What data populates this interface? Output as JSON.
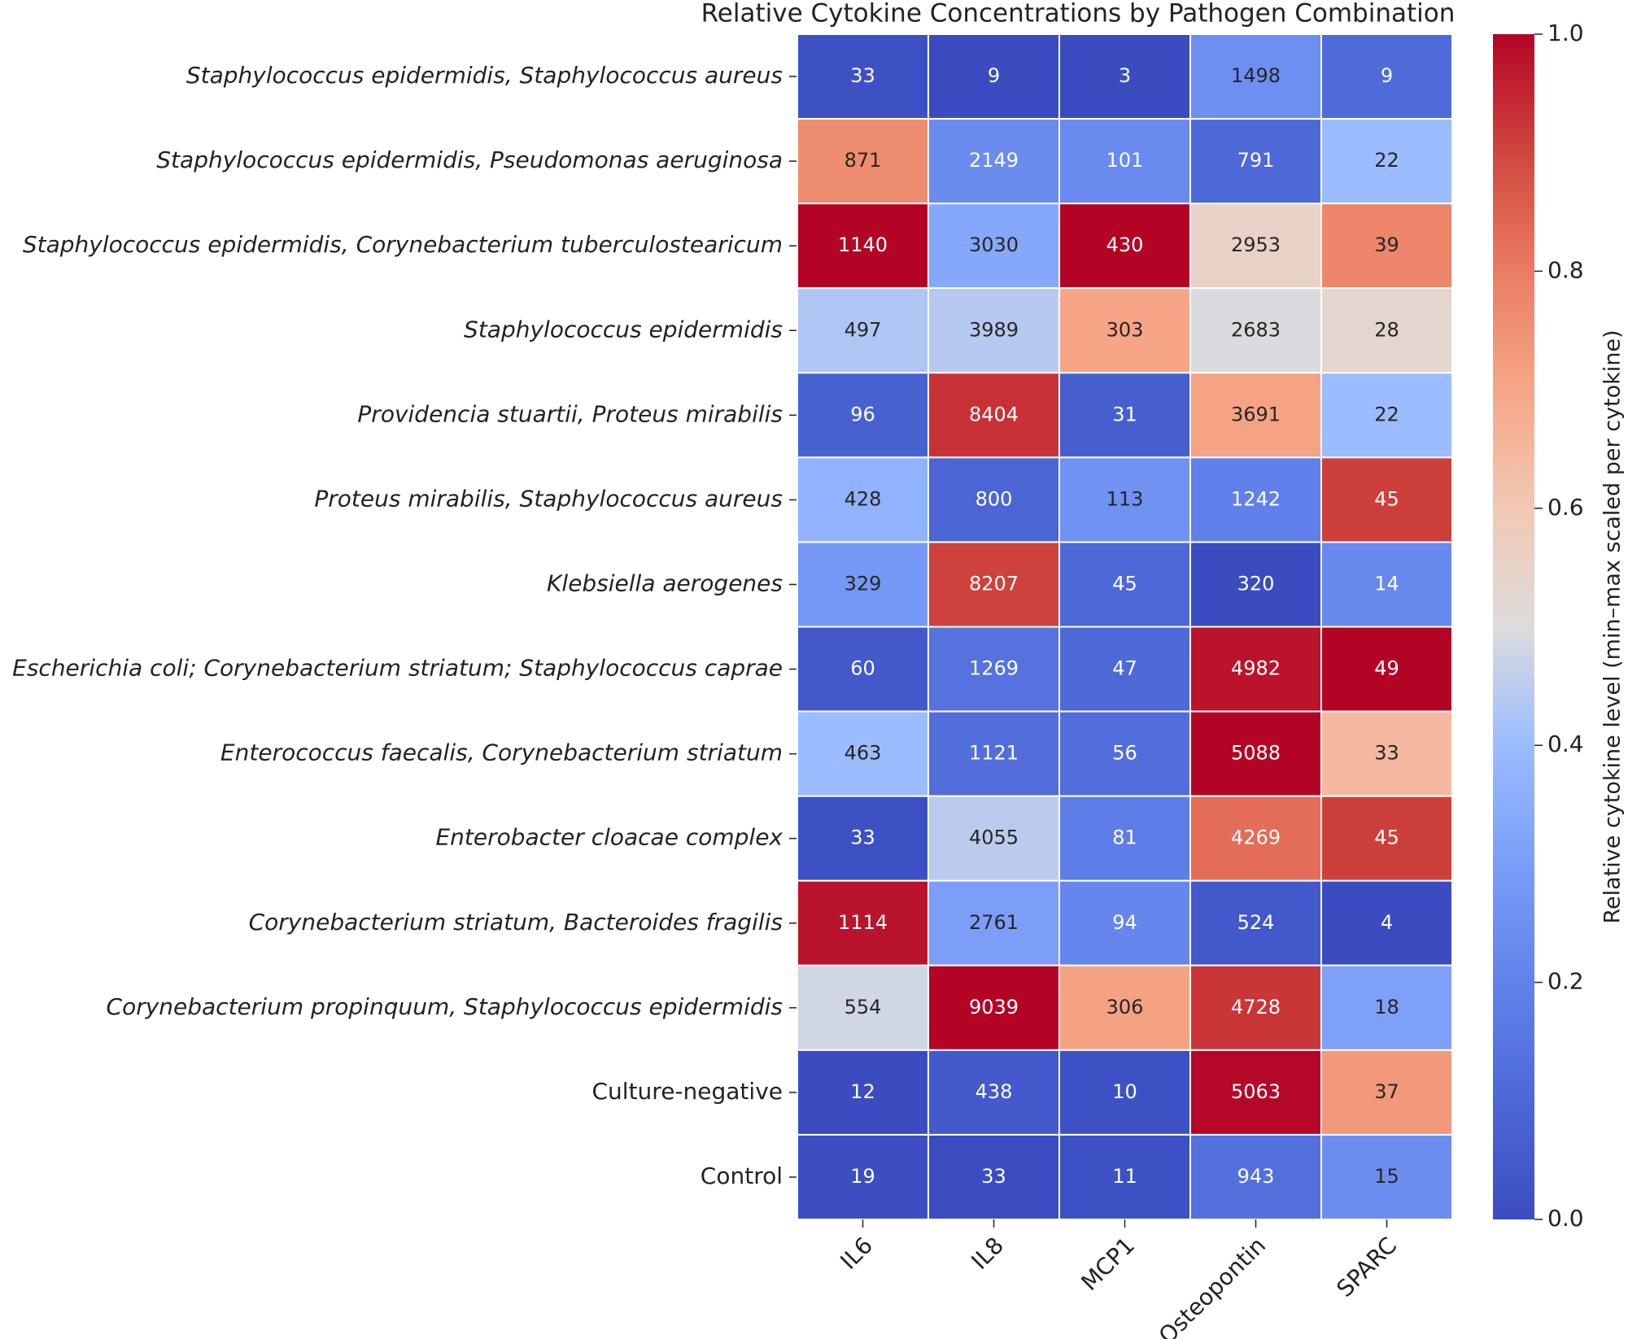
{
  "chart_data": {
    "type": "heatmap",
    "title": "Relative Cytokine Concentrations by Pathogen Combination",
    "rows": [
      "Staphylococcus epidermidis, Staphylococcus aureus",
      "Staphylococcus epidermidis, Pseudomonas aeruginosa",
      "Staphylococcus epidermidis, Corynebacterium tuberculostearicum",
      "Staphylococcus epidermidis",
      "Providencia stuartii, Proteus mirabilis",
      "Proteus mirabilis, Staphylococcus aureus",
      "Klebsiella aerogenes",
      "Escherichia coli; Corynebacterium striatum; Staphylococcus caprae",
      "Enterococcus faecalis, Corynebacterium striatum",
      "Enterobacter cloacae complex",
      "Corynebacterium striatum, Bacteroides fragilis",
      "Corynebacterium propinquum, Staphylococcus epidermidis",
      "Culture-negative",
      "Control"
    ],
    "row_label_style": [
      "italic",
      "italic",
      "italic",
      "italic",
      "italic",
      "italic",
      "italic",
      "italic",
      "italic",
      "italic",
      "italic",
      "italic",
      "normal",
      "normal"
    ],
    "columns": [
      "IL6",
      "IL8",
      "MCP1",
      "Osteopontin",
      "SPARC"
    ],
    "values": [
      [
        33,
        9,
        3,
        1498,
        9
      ],
      [
        871,
        2149,
        101,
        791,
        22
      ],
      [
        1140,
        3030,
        430,
        2953,
        39
      ],
      [
        497,
        3989,
        303,
        2683,
        28
      ],
      [
        96,
        8404,
        31,
        3691,
        22
      ],
      [
        428,
        800,
        113,
        1242,
        45
      ],
      [
        329,
        8207,
        45,
        320,
        14
      ],
      [
        60,
        1269,
        47,
        4982,
        49
      ],
      [
        463,
        1121,
        56,
        5088,
        33
      ],
      [
        33,
        4055,
        81,
        4269,
        45
      ],
      [
        1114,
        2761,
        94,
        524,
        4
      ],
      [
        554,
        9039,
        306,
        4728,
        18
      ],
      [
        12,
        438,
        10,
        5063,
        37
      ],
      [
        19,
        33,
        11,
        943,
        15
      ]
    ],
    "colormap": "coolwarm",
    "scaling": "column",
    "colorbar_label": "Relative cytokine level (min–max scaled per cytokine)",
    "ylim": [
      0,
      1
    ],
    "yticks": [
      {
        "value": 0,
        "label": "0.0"
      },
      {
        "value": 0.2,
        "label": "0.2"
      },
      {
        "value": 0.4,
        "label": "0.4"
      },
      {
        "value": 0.6,
        "label": "0.6"
      },
      {
        "value": 0.8,
        "label": "0.8"
      },
      {
        "value": 1,
        "label": "1.0"
      }
    ]
  }
}
